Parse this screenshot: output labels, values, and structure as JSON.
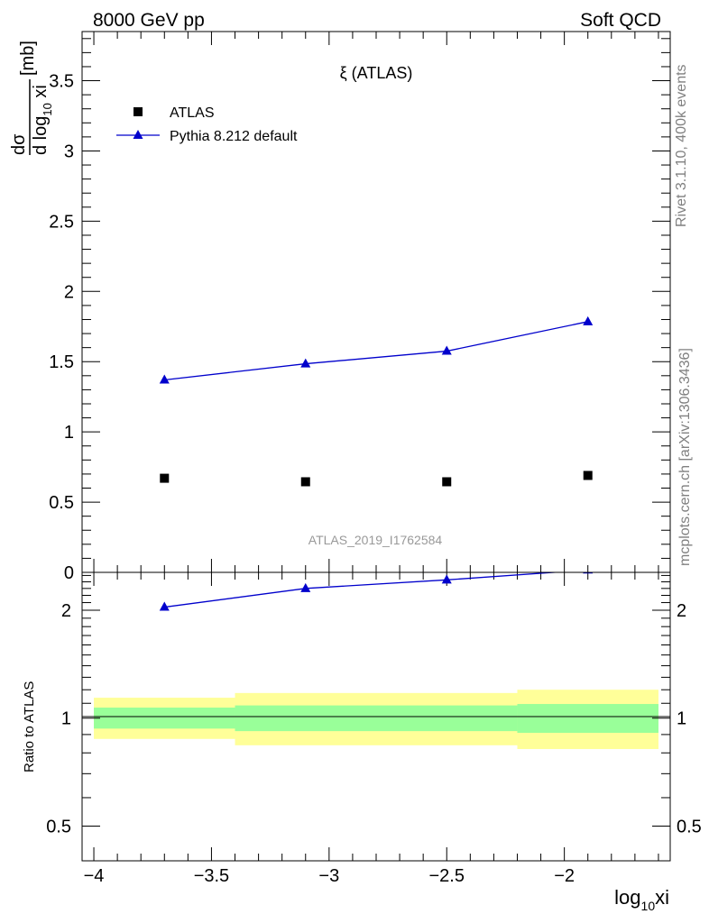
{
  "header": {
    "left": "8000 GeV pp",
    "right": "Soft QCD"
  },
  "side_labels": {
    "rivet": "Rivet 3.1.10,  400k events",
    "mcplots": "mcplots.cern.ch [arXiv:1306.3436]"
  },
  "colors": {
    "model": "#0000cc",
    "data": "#000000",
    "band_inner": "#99ff99",
    "band_outer": "#ffff99",
    "watermark": "#999999",
    "side_text": "#808080"
  },
  "chart_data": [
    {
      "type": "scatter",
      "title": "ξ (ATLAS)",
      "ylabel_num": "dσ",
      "ylabel_den": "d log",
      "ylabel_den_sub": "10",
      "ylabel_den_tail": " xi",
      "ylabel_unit": "[mb]",
      "watermark": "ATLAS_2019_I1762584",
      "xlim": [
        -4.05,
        -1.55
      ],
      "ylim": [
        0,
        3.85
      ],
      "yticks": [
        0,
        0.5,
        1,
        1.5,
        2,
        2.5,
        3,
        3.5
      ],
      "ytick_labels": [
        "0",
        "0.5",
        "1",
        "1.5",
        "2",
        "2.5",
        "3",
        "3.5"
      ],
      "legend": {
        "data_label": "ATLAS",
        "model_label": "Pythia 8.212 default",
        "placement": "top-left"
      },
      "series": [
        {
          "name": "ATLAS",
          "marker": "square",
          "x": [
            -3.7,
            -3.1,
            -2.5,
            -1.9
          ],
          "y": [
            0.67,
            0.645,
            0.645,
            0.69
          ]
        },
        {
          "name": "Pythia 8.212 default",
          "marker": "triangle",
          "x": [
            -3.7,
            -3.1,
            -2.5,
            -1.9
          ],
          "y": [
            1.37,
            1.485,
            1.575,
            1.785
          ]
        }
      ]
    },
    {
      "type": "line",
      "ylabel": "Ratio to ATLAS",
      "xlabel_main": "log",
      "xlabel_sub": "10",
      "xlabel_tail": "xi",
      "xlim": [
        -4.05,
        -1.55
      ],
      "ylim": [
        0.4,
        2.55
      ],
      "scale": "log",
      "xticks": [
        -4,
        -3.5,
        -3,
        -2.5,
        -2
      ],
      "xtick_labels": [
        "−4",
        "−3.5",
        "−3",
        "−2.5",
        "−2"
      ],
      "yticks": [
        0.5,
        1,
        2
      ],
      "ytick_labels": [
        "0.5",
        "1",
        "2"
      ],
      "bands": [
        {
          "x": [
            -4.0,
            -3.4
          ],
          "inner": [
            0.935,
            1.07
          ],
          "outer": [
            0.875,
            1.14
          ]
        },
        {
          "x": [
            -3.4,
            -2.8
          ],
          "inner": [
            0.92,
            1.085
          ],
          "outer": [
            0.84,
            1.175
          ]
        },
        {
          "x": [
            -2.8,
            -2.2
          ],
          "inner": [
            0.92,
            1.085
          ],
          "outer": [
            0.84,
            1.175
          ]
        },
        {
          "x": [
            -2.2,
            -1.6
          ],
          "inner": [
            0.91,
            1.095
          ],
          "outer": [
            0.82,
            1.2
          ]
        }
      ],
      "series": [
        {
          "name": "Pythia 8.212 default",
          "x": [
            -3.7,
            -3.1,
            -2.5,
            -1.9
          ],
          "y": [
            2.04,
            2.3,
            2.43,
            2.59
          ]
        }
      ]
    }
  ]
}
